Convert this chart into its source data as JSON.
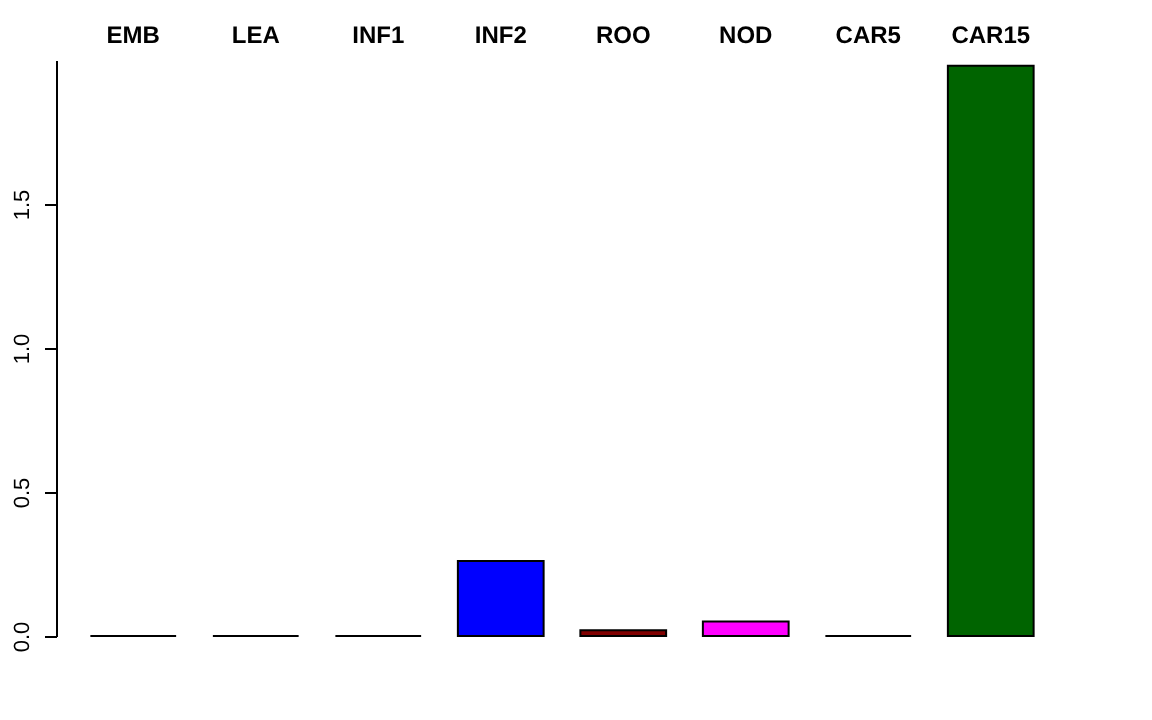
{
  "chart_data": {
    "type": "bar",
    "categories": [
      "EMB",
      "LEA",
      "INF1",
      "INF2",
      "ROO",
      "NOD",
      "CAR5",
      "CAR15"
    ],
    "values": [
      0,
      0,
      0,
      0.26,
      0.02,
      0.05,
      0,
      1.98
    ],
    "colors": [
      "#000000",
      "#000000",
      "#000000",
      "#0000ff",
      "#800000",
      "#ff00ff",
      "#000000",
      "#006400"
    ],
    "ylim": [
      0,
      2.0
    ],
    "yticks": [
      {
        "value": 0,
        "label": "0.0"
      },
      {
        "value": 0.5,
        "label": "0.5"
      },
      {
        "value": 1,
        "label": "1.0"
      },
      {
        "value": 1.5,
        "label": "1.5"
      }
    ],
    "grid": false
  }
}
